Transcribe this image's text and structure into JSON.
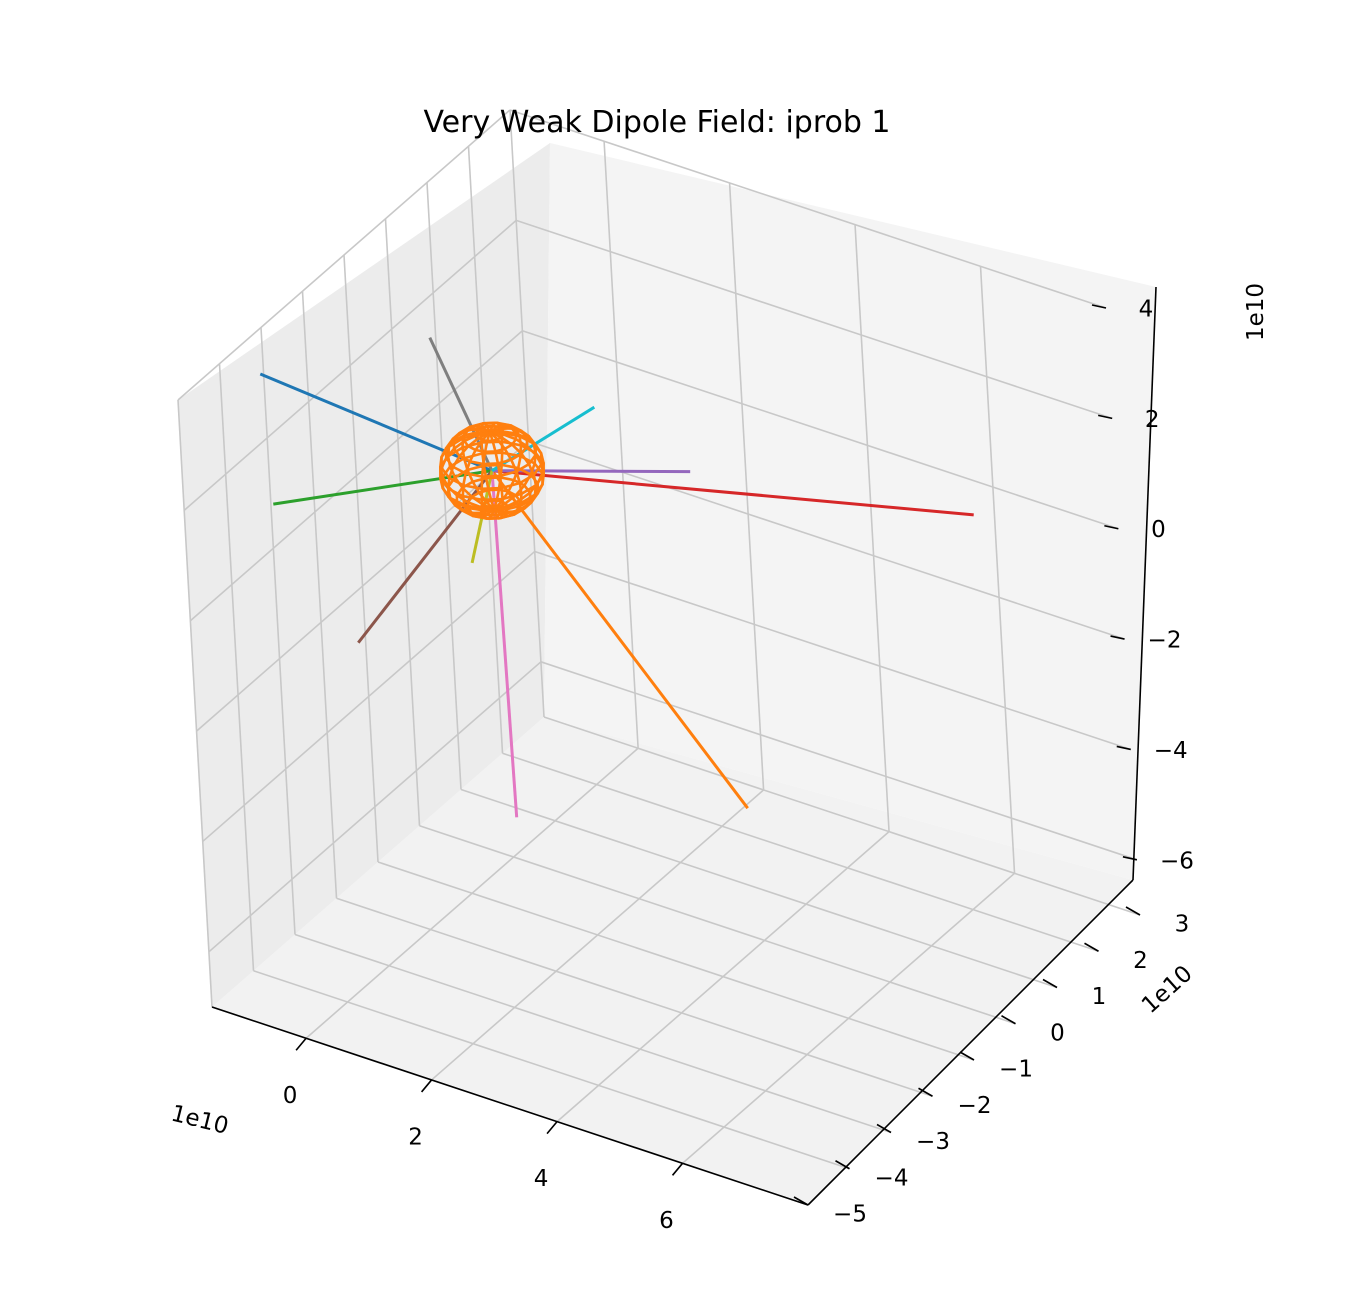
{
  "chart_data": {
    "type": "line3d",
    "title": "Very Weak Dipole Field: iprob 1",
    "grid": true,
    "pane_color": "#f2f2f2",
    "grid_color": "#c8c8c8",
    "axes": {
      "x": {
        "offset_label": "1e10",
        "ticks": [
          0,
          2,
          4,
          6
        ],
        "tick_labels": [
          "0",
          "2",
          "4",
          "6"
        ],
        "lim": [
          -1.5,
          8
        ]
      },
      "y": {
        "offset_label": "1e10",
        "ticks": [
          -5,
          -4,
          -3,
          -2,
          -1,
          0,
          1,
          2,
          3
        ],
        "tick_labels": [
          "−5",
          "−4",
          "−3",
          "−2",
          "−1",
          "0",
          "1",
          "2",
          "3"
        ],
        "lim": [
          -5,
          3
        ]
      },
      "z": {
        "offset_label": "1e10",
        "ticks": [
          -6,
          -4,
          -2,
          0,
          2,
          4
        ],
        "tick_labels": [
          "−6",
          "−4",
          "−2",
          "0",
          "2",
          "4"
        ],
        "lim": [
          -7,
          4
        ]
      }
    },
    "series": [
      {
        "color": "#1f77b4",
        "start": [
          0.0,
          0.0,
          0.0
        ],
        "end": [
          -1.2,
          -3.5,
          3.6
        ]
      },
      {
        "color": "#ff7f0e",
        "start": [
          0.0,
          0.0,
          0.0
        ],
        "end": [
          4.2,
          -0.5,
          -4.2
        ]
      },
      {
        "color": "#2ca02c",
        "start": [
          0.0,
          0.0,
          0.0
        ],
        "end": [
          -0.4,
          -4.5,
          2.2
        ]
      },
      {
        "color": "#d62728",
        "start": [
          0.0,
          0.0,
          0.0
        ],
        "end": [
          6.3,
          2.1,
          0.2
        ]
      },
      {
        "color": "#9467bd",
        "start": [
          0.0,
          0.0,
          0.0
        ],
        "end": [
          2.3,
          1.3,
          0.0
        ]
      },
      {
        "color": "#8c564b",
        "start": [
          0.0,
          0.0,
          0.0
        ],
        "end": [
          0.5,
          -4.0,
          -0.3
        ]
      },
      {
        "color": "#e377c2",
        "start": [
          0.0,
          0.0,
          0.0
        ],
        "end": [
          1.5,
          -2.0,
          -4.4
        ]
      },
      {
        "color": "#7f7f7f",
        "start": [
          0.0,
          0.0,
          0.0
        ],
        "end": [
          -1.1,
          0.3,
          1.8
        ]
      },
      {
        "color": "#bcbd22",
        "start": [
          0.0,
          0.0,
          0.0
        ],
        "end": [
          0.3,
          -1.0,
          -0.9
        ]
      },
      {
        "color": "#17becf",
        "start": [
          0.0,
          0.0,
          0.0
        ],
        "end": [
          0.8,
          1.3,
          0.6
        ]
      }
    ],
    "sphere": {
      "color": "#ff7f0e",
      "center": [
        0.0,
        0.0,
        0.0
      ],
      "radius": 0.7
    }
  }
}
